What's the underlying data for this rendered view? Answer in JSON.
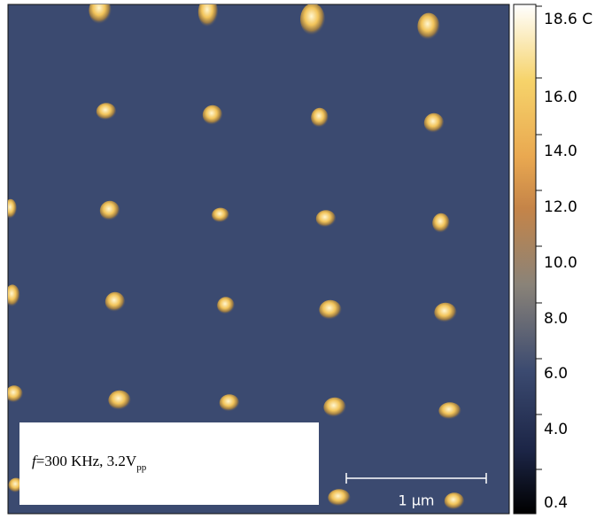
{
  "colorbar": {
    "labels": [
      "18.6 C",
      "16.0",
      "14.0",
      "12.0",
      "10.0",
      "8.0",
      "6.0",
      "4.0",
      "0.4"
    ]
  },
  "scale_bar": {
    "label": "1 μm"
  },
  "inset": {
    "italic": "f",
    "text": "=300 KHz, 3.2V",
    "subscript": "pp"
  }
}
